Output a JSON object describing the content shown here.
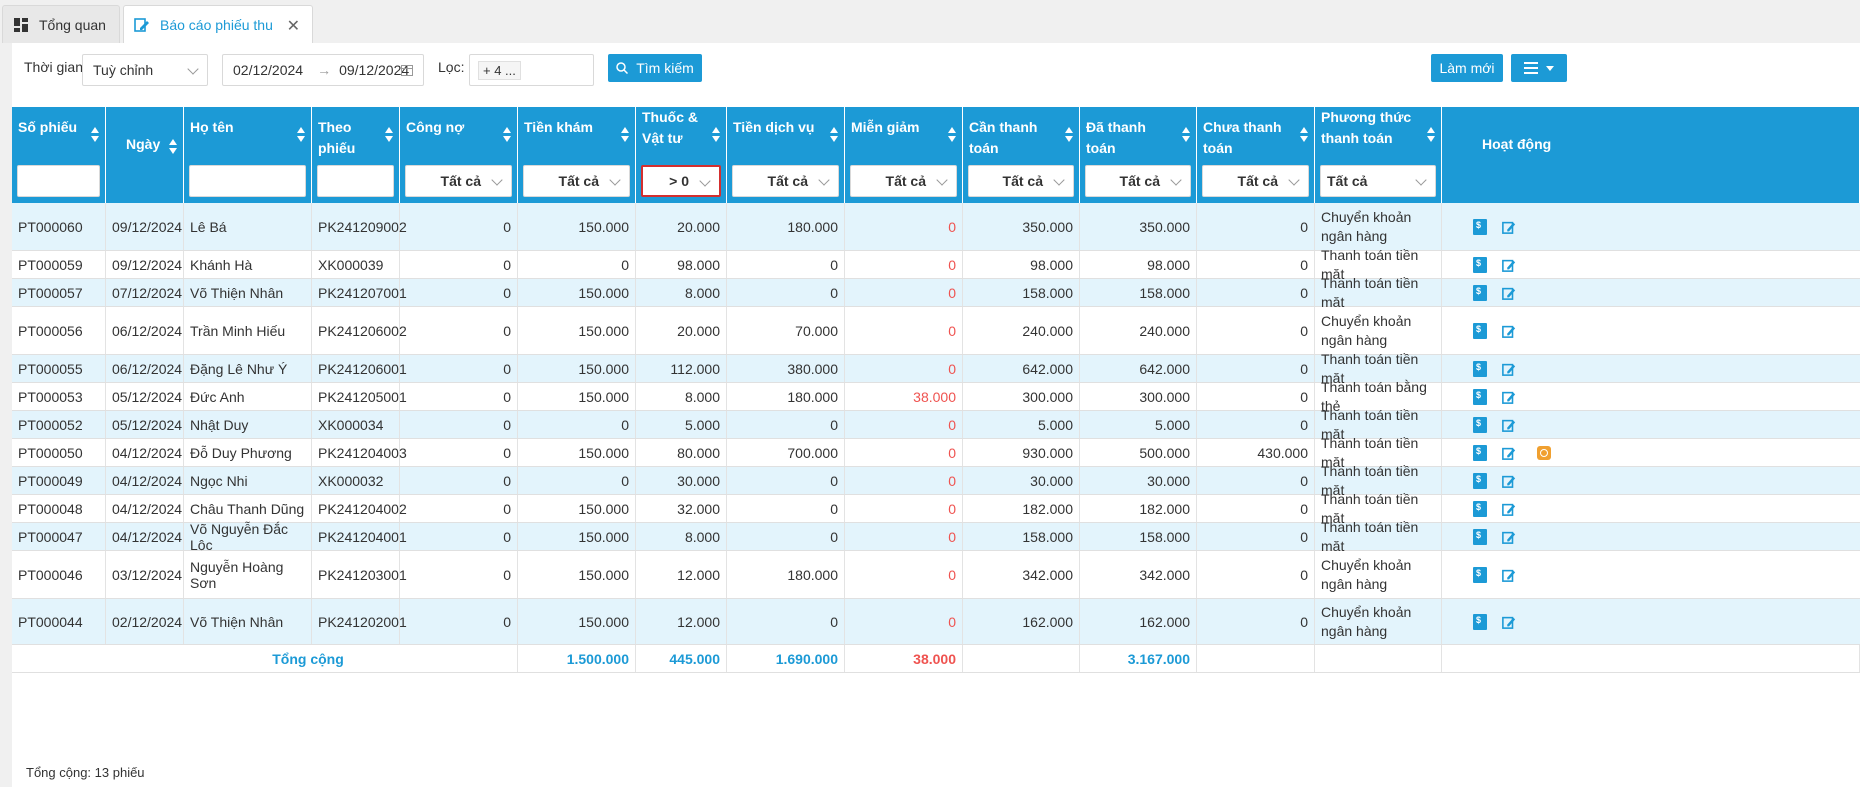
{
  "tabs": [
    {
      "label": "Tổng quan"
    },
    {
      "label": "Báo cáo phiếu thu"
    }
  ],
  "toolbar": {
    "time_label": "Thời gian:",
    "time_value": "Tuỳ chỉnh",
    "date_from": "02/12/2024",
    "date_to": "09/12/2024",
    "filter_label": "Lọc:",
    "filter_value": "+ 4 ...",
    "search_label": "Tìm kiếm",
    "refresh_label": "Làm mới"
  },
  "columns": [
    {
      "label": "Số phiếu",
      "filter": ""
    },
    {
      "label": "Ngày",
      "filter": ""
    },
    {
      "label": "Họ tên",
      "filter": ""
    },
    {
      "label": "Theo phiếu",
      "filter": ""
    },
    {
      "label": "Công nợ",
      "filter": "Tất cả"
    },
    {
      "label": "Tiền khám",
      "filter": "Tất cả"
    },
    {
      "label": "Thuốc & Vật tư",
      "filter": "> 0"
    },
    {
      "label": "Tiền dịch vụ",
      "filter": "Tất cả"
    },
    {
      "label": "Miễn giảm",
      "filter": "Tất cả"
    },
    {
      "label": "Cần thanh toán",
      "filter": "Tất cả"
    },
    {
      "label": "Đã thanh toán",
      "filter": "Tất cả"
    },
    {
      "label": "Chưa thanh toán",
      "filter": "Tất cả"
    },
    {
      "label": "Phương thức thanh toán",
      "filter": "Tất cả"
    },
    {
      "label": "Hoạt động",
      "filter": ""
    }
  ],
  "rows": [
    {
      "so": "PT000060",
      "ngay": "09/12/2024",
      "ten": "Lê Bá",
      "theo": "PK241209002",
      "congno": "0",
      "kham": "150.000",
      "thuoc": "20.000",
      "dichvu": "180.000",
      "mien": "0",
      "can": "350.000",
      "da": "350.000",
      "chua": "0",
      "pt": "Chuyển khoản ngân hàng"
    },
    {
      "so": "PT000059",
      "ngay": "09/12/2024",
      "ten": "Khánh Hà",
      "theo": "XK000039",
      "congno": "0",
      "kham": "0",
      "thuoc": "98.000",
      "dichvu": "0",
      "mien": "0",
      "can": "98.000",
      "da": "98.000",
      "chua": "0",
      "pt": "Thanh toán tiền mặt"
    },
    {
      "so": "PT000057",
      "ngay": "07/12/2024",
      "ten": "Võ Thiện Nhân",
      "theo": "PK241207001",
      "congno": "0",
      "kham": "150.000",
      "thuoc": "8.000",
      "dichvu": "0",
      "mien": "0",
      "can": "158.000",
      "da": "158.000",
      "chua": "0",
      "pt": "Thanh toán tiền mặt"
    },
    {
      "so": "PT000056",
      "ngay": "06/12/2024",
      "ten": "Trần Minh Hiếu",
      "theo": "PK241206002",
      "congno": "0",
      "kham": "150.000",
      "thuoc": "20.000",
      "dichvu": "70.000",
      "mien": "0",
      "can": "240.000",
      "da": "240.000",
      "chua": "0",
      "pt": "Chuyển khoản ngân hàng"
    },
    {
      "so": "PT000055",
      "ngay": "06/12/2024",
      "ten": "Đặng Lê Như Ý",
      "theo": "PK241206001",
      "congno": "0",
      "kham": "150.000",
      "thuoc": "112.000",
      "dichvu": "380.000",
      "mien": "0",
      "can": "642.000",
      "da": "642.000",
      "chua": "0",
      "pt": "Thanh toán tiền mặt"
    },
    {
      "so": "PT000053",
      "ngay": "05/12/2024",
      "ten": "Đức Anh",
      "theo": "PK241205001",
      "congno": "0",
      "kham": "150.000",
      "thuoc": "8.000",
      "dichvu": "180.000",
      "mien": "38.000",
      "can": "300.000",
      "da": "300.000",
      "chua": "0",
      "pt": "Thanh toán bằng thẻ"
    },
    {
      "so": "PT000052",
      "ngay": "05/12/2024",
      "ten": "Nhật Duy",
      "theo": "XK000034",
      "congno": "0",
      "kham": "0",
      "thuoc": "5.000",
      "dichvu": "0",
      "mien": "0",
      "can": "5.000",
      "da": "5.000",
      "chua": "0",
      "pt": "Thanh toán tiền mặt"
    },
    {
      "so": "PT000050",
      "ngay": "04/12/2024",
      "ten": "Đỗ Duy Phương",
      "theo": "PK241204003",
      "congno": "0",
      "kham": "150.000",
      "thuoc": "80.000",
      "dichvu": "700.000",
      "mien": "0",
      "can": "930.000",
      "da": "500.000",
      "chua": "430.000",
      "pt": "Thanh toán tiền mặt"
    },
    {
      "so": "PT000049",
      "ngay": "04/12/2024",
      "ten": "Ngọc Nhi",
      "theo": "XK000032",
      "congno": "0",
      "kham": "0",
      "thuoc": "30.000",
      "dichvu": "0",
      "mien": "0",
      "can": "30.000",
      "da": "30.000",
      "chua": "0",
      "pt": "Thanh toán tiền mặt"
    },
    {
      "so": "PT000048",
      "ngay": "04/12/2024",
      "ten": "Châu Thanh Dũng",
      "theo": "PK241204002",
      "congno": "0",
      "kham": "150.000",
      "thuoc": "32.000",
      "dichvu": "0",
      "mien": "0",
      "can": "182.000",
      "da": "182.000",
      "chua": "0",
      "pt": "Thanh toán tiền mặt"
    },
    {
      "so": "PT000047",
      "ngay": "04/12/2024",
      "ten": "Võ Nguyễn Đắc Lộc",
      "theo": "PK241204001",
      "congno": "0",
      "kham": "150.000",
      "thuoc": "8.000",
      "dichvu": "0",
      "mien": "0",
      "can": "158.000",
      "da": "158.000",
      "chua": "0",
      "pt": "Thanh toán tiền mặt"
    },
    {
      "so": "PT000046",
      "ngay": "03/12/2024",
      "ten": "Nguyễn Hoàng Sơn",
      "theo": "PK241203001",
      "congno": "0",
      "kham": "150.000",
      "thuoc": "12.000",
      "dichvu": "180.000",
      "mien": "0",
      "can": "342.000",
      "da": "342.000",
      "chua": "0",
      "pt": "Chuyển khoản ngân hàng"
    },
    {
      "so": "PT000044",
      "ngay": "02/12/2024",
      "ten": "Võ Thiện Nhân",
      "theo": "PK241202001",
      "congno": "0",
      "kham": "150.000",
      "thuoc": "12.000",
      "dichvu": "0",
      "mien": "0",
      "can": "162.000",
      "da": "162.000",
      "chua": "0",
      "pt": "Chuyển khoản ngân hàng"
    }
  ],
  "totals": {
    "label": "Tổng cộng",
    "kham": "1.500.000",
    "thuoc": "445.000",
    "dichvu": "1.690.000",
    "mien": "38.000",
    "da": "3.167.000"
  },
  "footer": "Tổng cộng: 13 phiếu",
  "colors": {
    "accent": "#1c9ad6",
    "alt_row": "#e3f4fc",
    "negative": "#ef5350",
    "highlight_border": "#d32f2f"
  }
}
